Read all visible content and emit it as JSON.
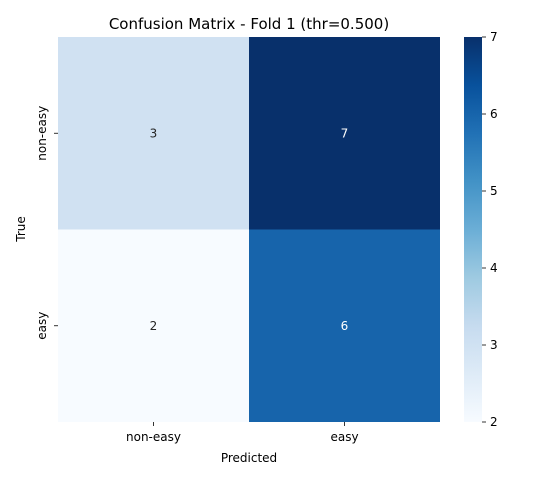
{
  "chart_data": {
    "type": "heatmap",
    "title": "Confusion Matrix - Fold 1 (thr=0.500)",
    "xlabel": "Predicted",
    "ylabel": "True",
    "x_categories": [
      "non-easy",
      "easy"
    ],
    "y_categories": [
      "non-easy",
      "easy"
    ],
    "values": [
      [
        3,
        7
      ],
      [
        2,
        6
      ]
    ],
    "colorbar": {
      "min": 2,
      "max": 7,
      "ticks": [
        2,
        3,
        4,
        5,
        6,
        7
      ]
    },
    "colormap": [
      "#f7fbff",
      "#deebf7",
      "#c6dbef",
      "#9ecae1",
      "#6baed6",
      "#4292c6",
      "#2171b5",
      "#08519c",
      "#08306b"
    ],
    "legend": "colorbar-right",
    "grid": false
  }
}
